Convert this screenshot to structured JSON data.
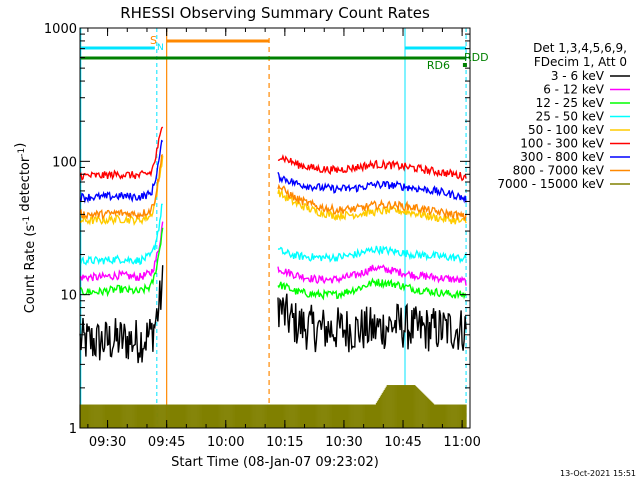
{
  "chart_data": {
    "type": "line",
    "title": "RHESSI Observing Summary Count Rates",
    "xlabel": "Start Time (08-Jan-07 09:23:02)",
    "ylabel": "Count Rate (s",
    "ylabel_sup1": "-1",
    "ylabel_mid": " detector",
    "ylabel_sup2": "-1",
    "ylabel_end": ")",
    "y_scale": "log",
    "ylim": [
      1,
      1000
    ],
    "x_unit": "minutes since 09:23:02",
    "xlim": [
      0,
      99
    ],
    "x_ticks": [
      {
        "value": 7,
        "label": "09:30"
      },
      {
        "value": 22,
        "label": "09:45"
      },
      {
        "value": 37,
        "label": "10:00"
      },
      {
        "value": 52,
        "label": "10:15"
      },
      {
        "value": 67,
        "label": "10:30"
      },
      {
        "value": 82,
        "label": "10:45"
      },
      {
        "value": 97,
        "label": "11:00"
      }
    ],
    "y_ticks": [
      {
        "value": 1,
        "label": "1"
      },
      {
        "value": 10,
        "label": "10"
      },
      {
        "value": 100,
        "label": "100"
      },
      {
        "value": 1000,
        "label": "1000"
      }
    ],
    "legend_header": [
      "Det 1,3,4,5,6,9,",
      "FDecim 1, Att 0"
    ],
    "legend_position": "right",
    "series": [
      {
        "name": "3 - 6 keV",
        "color": "#000000",
        "x": [
          0,
          5,
          10,
          15,
          18,
          19,
          20,
          21,
          22,
          48,
          50,
          52,
          55,
          60,
          65,
          70,
          75,
          80,
          85,
          90,
          95,
          98
        ],
        "y": [
          4.5,
          4.4,
          4.6,
          4.5,
          5,
          6,
          8,
          12,
          null,
          null,
          9,
          7,
          6,
          5.5,
          5.5,
          5.5,
          5.5,
          6,
          5.5,
          5.5,
          5.5,
          5.5
        ]
      },
      {
        "name": "6 - 12 keV",
        "color": "#ff00ff",
        "x": [
          0,
          5,
          10,
          15,
          18,
          19,
          20,
          21,
          22,
          48,
          50,
          52,
          55,
          60,
          65,
          70,
          75,
          80,
          85,
          90,
          95,
          98
        ],
        "y": [
          13.5,
          13.5,
          14,
          13.5,
          14.5,
          17,
          22,
          35,
          null,
          null,
          16,
          15,
          14,
          13,
          13,
          14,
          16,
          15,
          14,
          13.5,
          13,
          12.5
        ]
      },
      {
        "name": "12 - 25 keV",
        "color": "#00ff00",
        "x": [
          0,
          5,
          10,
          15,
          18,
          19,
          20,
          21,
          22,
          48,
          50,
          52,
          55,
          60,
          65,
          70,
          75,
          80,
          85,
          90,
          95,
          98
        ],
        "y": [
          10.5,
          10.5,
          11,
          10.5,
          11.5,
          14,
          20,
          32,
          null,
          null,
          12,
          11.5,
          10.5,
          10,
          10,
          11,
          12.5,
          12,
          11,
          10.5,
          10,
          10
        ]
      },
      {
        "name": "25 - 50 keV",
        "color": "#00ffff",
        "x": [
          0,
          5,
          10,
          15,
          18,
          19,
          20,
          21,
          22,
          48,
          50,
          52,
          55,
          60,
          65,
          70,
          75,
          80,
          85,
          90,
          95,
          98
        ],
        "y": [
          18,
          18,
          18.5,
          18,
          19.5,
          23,
          32,
          50,
          null,
          null,
          22,
          20.5,
          19.5,
          19,
          19,
          20,
          22,
          21,
          20,
          19.5,
          19,
          18.5
        ]
      },
      {
        "name": "50 - 100 keV",
        "color": "#ffcc00",
        "x": [
          0,
          5,
          10,
          15,
          18,
          19,
          20,
          21,
          22,
          48,
          50,
          52,
          55,
          60,
          65,
          70,
          75,
          80,
          85,
          90,
          95,
          98
        ],
        "y": [
          36,
          36,
          37,
          36,
          39,
          48,
          70,
          110,
          null,
          null,
          60,
          54,
          48,
          42,
          39,
          40,
          42,
          43,
          41,
          38,
          36,
          35
        ]
      },
      {
        "name": "100 - 300 keV",
        "color": "#ff0000",
        "x": [
          0,
          5,
          10,
          15,
          18,
          19,
          20,
          21,
          22,
          48,
          50,
          52,
          55,
          60,
          65,
          70,
          75,
          80,
          85,
          90,
          95,
          98
        ],
        "y": [
          78,
          78,
          80,
          78,
          82,
          100,
          140,
          185,
          null,
          null,
          110,
          105,
          95,
          88,
          86,
          90,
          95,
          93,
          89,
          84,
          80,
          76
        ]
      },
      {
        "name": "300 - 800 keV",
        "color": "#0000ff",
        "x": [
          0,
          5,
          10,
          15,
          18,
          19,
          20,
          21,
          22,
          48,
          50,
          52,
          55,
          60,
          65,
          70,
          75,
          80,
          85,
          90,
          95,
          98
        ],
        "y": [
          54,
          54,
          55,
          54,
          57,
          70,
          100,
          150,
          null,
          null,
          78,
          74,
          68,
          64,
          62,
          63,
          67,
          66,
          63,
          60,
          56,
          52
        ]
      },
      {
        "name": "800 - 7000 keV",
        "color": "#ff8800",
        "x": [
          0,
          5,
          10,
          15,
          18,
          19,
          20,
          21,
          22,
          48,
          50,
          52,
          55,
          60,
          65,
          70,
          75,
          80,
          85,
          90,
          95,
          98
        ],
        "y": [
          40,
          40,
          41,
          40,
          43,
          52,
          76,
          120,
          null,
          null,
          66,
          60,
          52,
          46,
          43,
          44,
          47,
          47,
          45,
          42,
          40,
          38
        ]
      },
      {
        "name": "7000 - 15000 keV",
        "color": "#808000",
        "x": [
          0,
          5,
          10,
          15,
          18,
          48,
          55,
          65,
          75,
          78,
          80,
          85,
          90,
          95,
          98
        ],
        "y": [
          1.5,
          1.5,
          1.5,
          1.5,
          1.5,
          1.5,
          1.5,
          1.5,
          1.5,
          2.1,
          2.1,
          2.1,
          1.5,
          1.5,
          1.5
        ]
      }
    ],
    "annotations": {
      "top_left_label": "S",
      "top_small_label": "N",
      "rd6_label": "RD6",
      "rdd_label": "RDD"
    },
    "footer_timestamp": "13-Oct-2021 15:51"
  }
}
